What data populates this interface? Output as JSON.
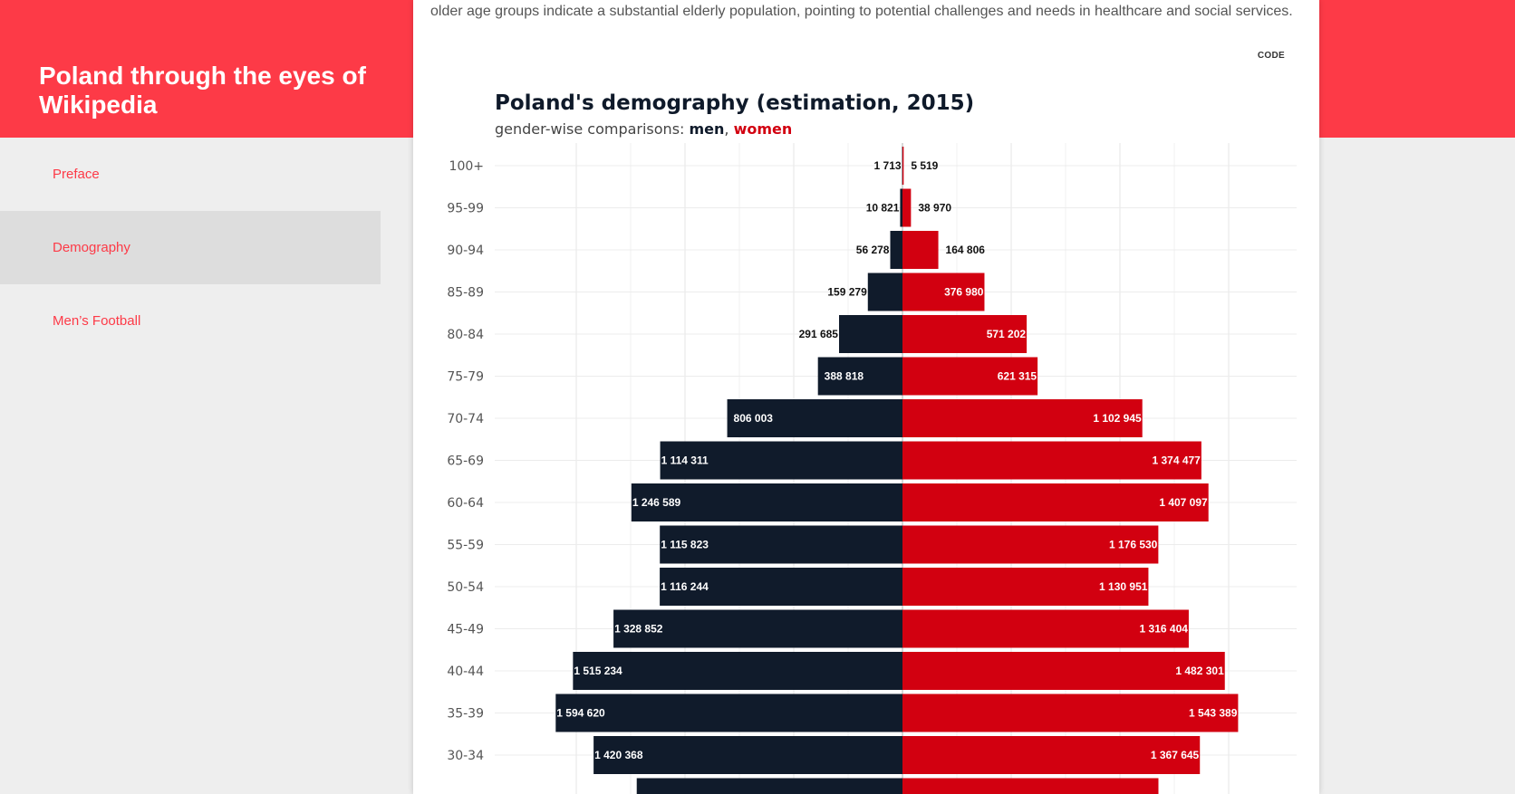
{
  "site": {
    "title": "Poland through the eyes of Wikipedia"
  },
  "nav": {
    "items": [
      {
        "label": "Preface",
        "active": false
      },
      {
        "label": "Demography",
        "active": true
      },
      {
        "label": "Men’s Football",
        "active": false
      }
    ]
  },
  "content": {
    "intro_text": "older age groups indicate a substantial elderly population, pointing to potential challenges and needs in healthcare and social services.",
    "code_label": "CODE"
  },
  "colors": {
    "accent": "#fd3a47",
    "men": "#101b2b",
    "women": "#d20010"
  },
  "chart_data": {
    "type": "bar",
    "orientation": "horizontal-butterfly",
    "title": "Poland's demography (estimation, 2015)",
    "subtitle_prefix": "gender-wise comparisons: ",
    "subtitle_sep": ", ",
    "categories": [
      "100+",
      "95-99",
      "90-94",
      "85-89",
      "80-84",
      "75-79",
      "70-74",
      "65-69",
      "60-64",
      "55-59",
      "50-54",
      "45-49",
      "40-44",
      "35-39",
      "30-34"
    ],
    "series": [
      {
        "name": "men",
        "values": [
          1713,
          10821,
          56278,
          159279,
          291685,
          388818,
          806003,
          1114311,
          1246589,
          1115823,
          1116244,
          1328852,
          1515234,
          1594620,
          1420368
        ],
        "labels": [
          "1 713",
          "10 821",
          "56 278",
          "159 279",
          "291 685",
          "388 818",
          "806 003",
          "1 114 311",
          "1 246 589",
          "1 115 823",
          "1 116 244",
          "1 328 852",
          "1 515 234",
          "1 594 620",
          "1 420 368"
        ]
      },
      {
        "name": "women",
        "values": [
          5519,
          38970,
          164806,
          376980,
          571202,
          621315,
          1102945,
          1374477,
          1407097,
          1176530,
          1130951,
          1316404,
          1482301,
          1543389,
          1367645
        ],
        "labels": [
          "5 519",
          "38 970",
          "164 806",
          "376 980",
          "571 202",
          "621 315",
          "1 102 945",
          "1 374 477",
          "1 407 097",
          "1 176 530",
          "1 130 951",
          "1 316 404",
          "1 482 301",
          "1 543 389",
          "1 367 645"
        ]
      }
    ],
    "partial_row": {
      "men": 1222000,
      "women": 1177000
    },
    "grid": true,
    "xlim": [
      -1750000,
      1700000
    ]
  }
}
